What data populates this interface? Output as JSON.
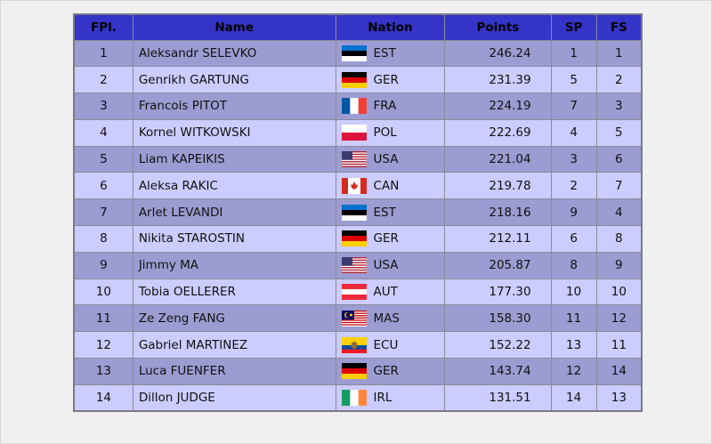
{
  "table": {
    "headers": [
      "FPl.",
      "Name",
      "Nation",
      "Points",
      "SP",
      "FS"
    ],
    "rows": [
      [
        "1",
        "Aleksandr SELEVKO",
        "EST",
        "246.24",
        "1",
        "1"
      ],
      [
        "2",
        "Genrikh GARTUNG",
        "GER",
        "231.39",
        "5",
        "2"
      ],
      [
        "3",
        "Francois PITOT",
        "FRA",
        "224.19",
        "7",
        "3"
      ],
      [
        "4",
        "Kornel WITKOWSKI",
        "POL",
        "222.69",
        "4",
        "5"
      ],
      [
        "5",
        "Liam KAPEIKIS",
        "USA",
        "221.04",
        "3",
        "6"
      ],
      [
        "6",
        "Aleksa RAKIC",
        "CAN",
        "219.78",
        "2",
        "7"
      ],
      [
        "7",
        "Arlet LEVANDI",
        "EST",
        "218.16",
        "9",
        "4"
      ],
      [
        "8",
        "Nikita STAROSTIN",
        "GER",
        "212.11",
        "6",
        "8"
      ],
      [
        "9",
        "Jimmy MA",
        "USA",
        "205.87",
        "8",
        "9"
      ],
      [
        "10",
        "Tobia OELLERER",
        "AUT",
        "177.30",
        "10",
        "10"
      ],
      [
        "11",
        "Ze Zeng FANG",
        "MAS",
        "158.30",
        "11",
        "12"
      ],
      [
        "12",
        "Gabriel MARTINEZ",
        "ECU",
        "152.22",
        "13",
        "11"
      ],
      [
        "13",
        "Luca FUENFER",
        "GER",
        "143.74",
        "12",
        "14"
      ],
      [
        "14",
        "Dillon JUDGE",
        "IRL",
        "131.51",
        "14",
        "13"
      ]
    ]
  }
}
